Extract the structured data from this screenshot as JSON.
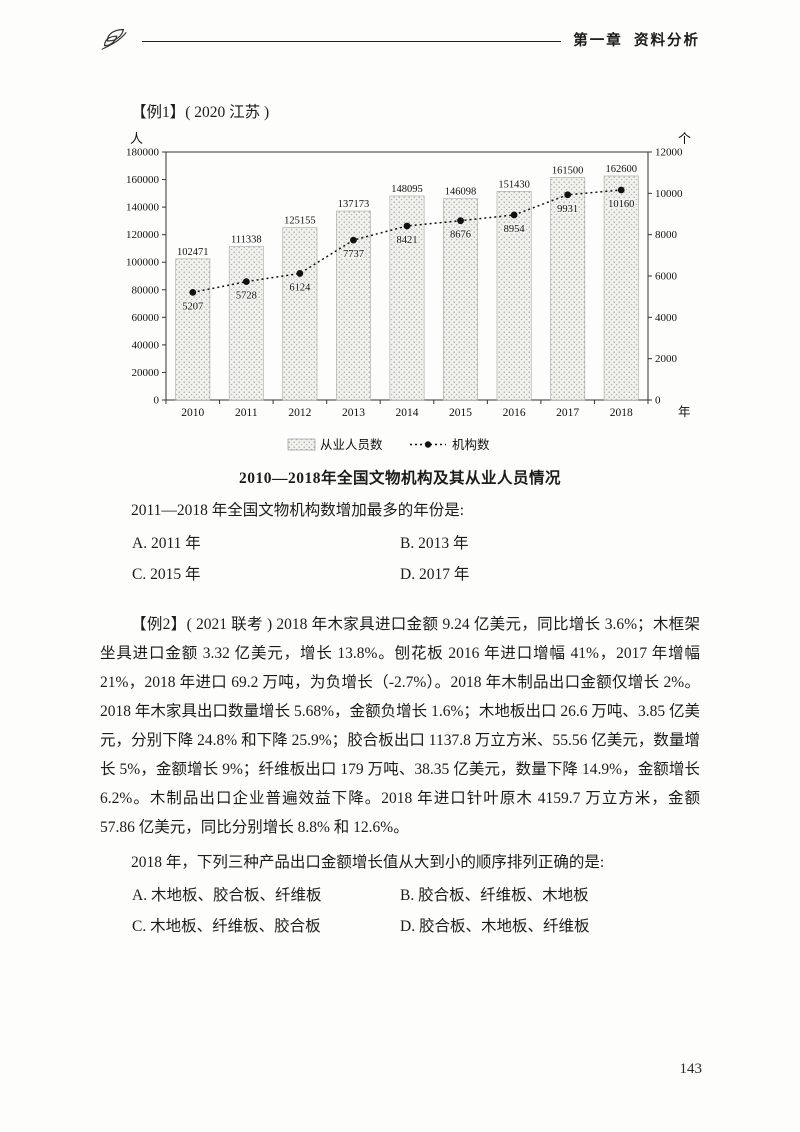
{
  "header": {
    "chapter": "第一章  资料分析"
  },
  "example1": {
    "label": "【例1】( 2020 江苏 )",
    "chart_title": "2010—2018年全国文物机构及其从业人员情况",
    "question": "2011—2018 年全国文物机构数增加最多的年份是:",
    "options": [
      "A. 2011 年",
      "B. 2013 年",
      "C. 2015 年",
      "D. 2017 年"
    ]
  },
  "chart_data": {
    "type": "bar",
    "subtype": "bar+line dual axis",
    "title": "2010—2018年全国文物机构及其从业人员情况",
    "categories": [
      "2010",
      "2011",
      "2012",
      "2013",
      "2014",
      "2015",
      "2016",
      "2017",
      "2018"
    ],
    "series": [
      {
        "name": "从业人员数",
        "type": "bar",
        "axis": "left",
        "values": [
          102471,
          111338,
          125155,
          137173,
          148095,
          146098,
          151430,
          161500,
          162600
        ]
      },
      {
        "name": "机构数",
        "type": "line",
        "axis": "right",
        "values": [
          5207,
          5728,
          6124,
          7737,
          8421,
          8676,
          8954,
          9931,
          10160
        ]
      }
    ],
    "left_axis": {
      "label": "人",
      "min": 0,
      "max": 180000,
      "step": 20000
    },
    "right_axis": {
      "label": "个",
      "min": 0,
      "max": 12000,
      "step": 2000
    },
    "x_axis_label": "年",
    "legend_position": "bottom",
    "grid": false
  },
  "example2": {
    "label": "【例2】( 2021 联考 ) ",
    "text": "2018 年木家具进口金额 9.24 亿美元，同比增长 3.6%；木框架坐具进口金额 3.32 亿美元，增长 13.8%。刨花板 2016 年进口增幅 41%，2017 年增幅 21%，2018 年进口 69.2 万吨，为负增长（-2.7%）。2018 年木制品出口金额仅增长 2%。2018 年木家具出口数量增长 5.68%，金额负增长 1.6%；木地板出口 26.6 万吨、3.85 亿美元，分别下降 24.8% 和下降 25.9%；胶合板出口 1137.8 万立方米、55.56 亿美元，数量增长 5%，金额增长 9%；纤维板出口 179 万吨、38.35 亿美元，数量下降 14.9%，金额增长 6.2%。木制品出口企业普遍效益下降。2018 年进口针叶原木 4159.7 万立方米，金额 57.86 亿美元，同比分别增长 8.8% 和 12.6%。",
    "question": "2018 年，下列三种产品出口金额增长值从大到小的顺序排列正确的是:",
    "options": [
      "A. 木地板、胶合板、纤维板",
      "B. 胶合板、纤维板、木地板",
      "C. 木地板、纤维板、胶合板",
      "D. 胶合板、木地板、纤维板"
    ]
  },
  "footer": {
    "page_number": "143"
  }
}
